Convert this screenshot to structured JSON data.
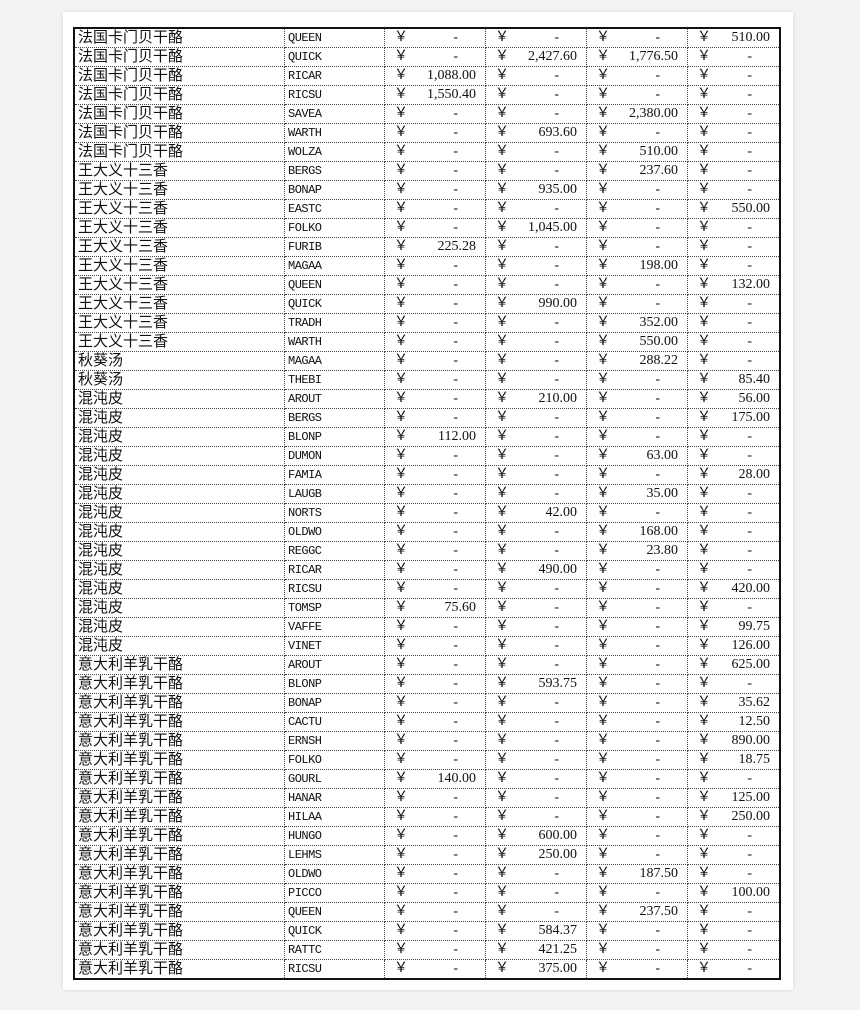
{
  "currency_symbol": "￥",
  "rows": [
    [
      "法国卡门贝干酪",
      "QUEEN",
      "-",
      "-",
      "-",
      "510.00"
    ],
    [
      "法国卡门贝干酪",
      "QUICK",
      "-",
      "2,427.60",
      "1,776.50",
      "-"
    ],
    [
      "法国卡门贝干酪",
      "RICAR",
      "1,088.00",
      "-",
      "-",
      "-"
    ],
    [
      "法国卡门贝干酪",
      "RICSU",
      "1,550.40",
      "-",
      "-",
      "-"
    ],
    [
      "法国卡门贝干酪",
      "SAVEA",
      "-",
      "-",
      "2,380.00",
      "-"
    ],
    [
      "法国卡门贝干酪",
      "WARTH",
      "-",
      "693.60",
      "-",
      "-"
    ],
    [
      "法国卡门贝干酪",
      "WOLZA",
      "-",
      "-",
      "510.00",
      "-"
    ],
    [
      "王大义十三香",
      "BERGS",
      "-",
      "-",
      "237.60",
      "-"
    ],
    [
      "王大义十三香",
      "BONAP",
      "-",
      "935.00",
      "-",
      "-"
    ],
    [
      "王大义十三香",
      "EASTC",
      "-",
      "-",
      "-",
      "550.00"
    ],
    [
      "王大义十三香",
      "FOLKO",
      "-",
      "1,045.00",
      "-",
      "-"
    ],
    [
      "王大义十三香",
      "FURIB",
      "225.28",
      "-",
      "-",
      "-"
    ],
    [
      "王大义十三香",
      "MAGAA",
      "-",
      "-",
      "198.00",
      "-"
    ],
    [
      "王大义十三香",
      "QUEEN",
      "-",
      "-",
      "-",
      "132.00"
    ],
    [
      "王大义十三香",
      "QUICK",
      "-",
      "990.00",
      "-",
      "-"
    ],
    [
      "王大义十三香",
      "TRADH",
      "-",
      "-",
      "352.00",
      "-"
    ],
    [
      "王大义十三香",
      "WARTH",
      "-",
      "-",
      "550.00",
      "-"
    ],
    [
      "秋葵汤",
      "MAGAA",
      "-",
      "-",
      "288.22",
      "-"
    ],
    [
      "秋葵汤",
      "THEBI",
      "-",
      "-",
      "-",
      "85.40"
    ],
    [
      "混沌皮",
      "AROUT",
      "-",
      "210.00",
      "-",
      "56.00"
    ],
    [
      "混沌皮",
      "BERGS",
      "-",
      "-",
      "-",
      "175.00"
    ],
    [
      "混沌皮",
      "BLONP",
      "112.00",
      "-",
      "-",
      "-"
    ],
    [
      "混沌皮",
      "DUMON",
      "-",
      "-",
      "63.00",
      "-"
    ],
    [
      "混沌皮",
      "FAMIA",
      "-",
      "-",
      "-",
      "28.00"
    ],
    [
      "混沌皮",
      "LAUGB",
      "-",
      "-",
      "35.00",
      "-"
    ],
    [
      "混沌皮",
      "NORTS",
      "-",
      "42.00",
      "-",
      "-"
    ],
    [
      "混沌皮",
      "OLDWO",
      "-",
      "-",
      "168.00",
      "-"
    ],
    [
      "混沌皮",
      "REGGC",
      "-",
      "-",
      "23.80",
      "-"
    ],
    [
      "混沌皮",
      "RICAR",
      "-",
      "490.00",
      "-",
      "-"
    ],
    [
      "混沌皮",
      "RICSU",
      "-",
      "-",
      "-",
      "420.00"
    ],
    [
      "混沌皮",
      "TOMSP",
      "75.60",
      "-",
      "-",
      "-"
    ],
    [
      "混沌皮",
      "VAFFE",
      "-",
      "-",
      "-",
      "99.75"
    ],
    [
      "混沌皮",
      "VINET",
      "-",
      "-",
      "-",
      "126.00"
    ],
    [
      "意大利羊乳干酪",
      "AROUT",
      "-",
      "-",
      "-",
      "625.00"
    ],
    [
      "意大利羊乳干酪",
      "BLONP",
      "-",
      "593.75",
      "-",
      "-"
    ],
    [
      "意大利羊乳干酪",
      "BONAP",
      "-",
      "-",
      "-",
      "35.62"
    ],
    [
      "意大利羊乳干酪",
      "CACTU",
      "-",
      "-",
      "-",
      "12.50"
    ],
    [
      "意大利羊乳干酪",
      "ERNSH",
      "-",
      "-",
      "-",
      "890.00"
    ],
    [
      "意大利羊乳干酪",
      "FOLKO",
      "-",
      "-",
      "-",
      "18.75"
    ],
    [
      "意大利羊乳干酪",
      "GOURL",
      "140.00",
      "-",
      "-",
      "-"
    ],
    [
      "意大利羊乳干酪",
      "HANAR",
      "-",
      "-",
      "-",
      "125.00"
    ],
    [
      "意大利羊乳干酪",
      "HILAA",
      "-",
      "-",
      "-",
      "250.00"
    ],
    [
      "意大利羊乳干酪",
      "HUNGO",
      "-",
      "600.00",
      "-",
      "-"
    ],
    [
      "意大利羊乳干酪",
      "LEHMS",
      "-",
      "250.00",
      "-",
      "-"
    ],
    [
      "意大利羊乳干酪",
      "OLDWO",
      "-",
      "-",
      "187.50",
      "-"
    ],
    [
      "意大利羊乳干酪",
      "PICCO",
      "-",
      "-",
      "-",
      "100.00"
    ],
    [
      "意大利羊乳干酪",
      "QUEEN",
      "-",
      "-",
      "237.50",
      "-"
    ],
    [
      "意大利羊乳干酪",
      "QUICK",
      "-",
      "584.37",
      "-",
      "-"
    ],
    [
      "意大利羊乳干酪",
      "RATTC",
      "-",
      "421.25",
      "-",
      "-"
    ],
    [
      "意大利羊乳干酪",
      "RICSU",
      "-",
      "375.00",
      "-",
      "-"
    ]
  ]
}
